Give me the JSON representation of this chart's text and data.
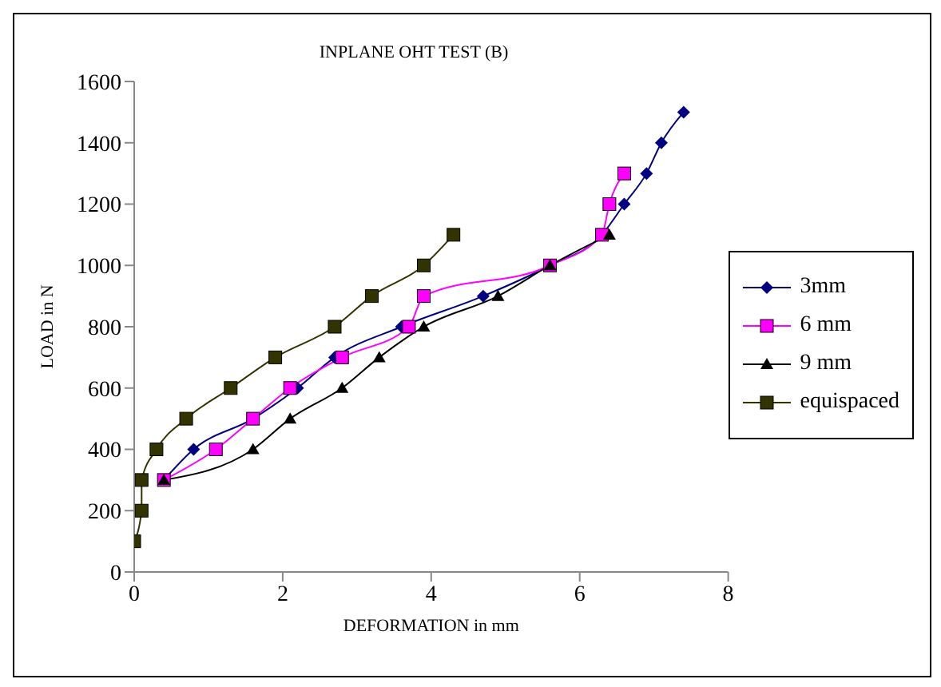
{
  "chart_data": {
    "type": "line",
    "title": "INPLANE OHT TEST (B)",
    "xlabel": "DEFORMATION in mm",
    "ylabel": "LOAD in N",
    "xlim": [
      0,
      8
    ],
    "xticks": [
      0,
      2,
      4,
      6,
      8
    ],
    "ylim": [
      0,
      1600
    ],
    "yticks": [
      0,
      200,
      400,
      600,
      800,
      1000,
      1200,
      1400,
      1600
    ],
    "grid": false,
    "legend": "right",
    "series": [
      {
        "name": "3mm",
        "color": "#000080",
        "marker": "diamond",
        "x": [
          0.4,
          0.8,
          1.6,
          2.2,
          2.7,
          3.6,
          4.7,
          5.6,
          6.3,
          6.6,
          6.9,
          7.1,
          7.4
        ],
        "values": [
          300,
          400,
          500,
          600,
          700,
          800,
          900,
          1000,
          1100,
          1200,
          1300,
          1400,
          1500
        ]
      },
      {
        "name": "6 mm",
        "color": "#ff00ff",
        "marker": "square",
        "x": [
          0.4,
          1.1,
          1.6,
          2.1,
          2.8,
          3.7,
          3.9,
          5.6,
          6.3,
          6.4,
          6.6
        ],
        "values": [
          300,
          400,
          500,
          600,
          700,
          800,
          900,
          1000,
          1100,
          1200,
          1300
        ]
      },
      {
        "name": "9 mm",
        "color": "#000000",
        "marker": "triangle",
        "x": [
          0.4,
          1.6,
          2.1,
          2.8,
          3.3,
          3.9,
          4.9,
          5.6,
          6.4
        ],
        "values": [
          300,
          400,
          500,
          600,
          700,
          800,
          900,
          1000,
          1100
        ]
      },
      {
        "name": "equispaced",
        "color": "#333300",
        "marker": "square",
        "x": [
          0,
          0.1,
          0.1,
          0.3,
          0.7,
          1.3,
          1.9,
          2.7,
          3.2,
          3.9,
          4.3
        ],
        "values": [
          100,
          200,
          300,
          400,
          500,
          600,
          700,
          800,
          900,
          1000,
          1100
        ]
      }
    ]
  }
}
